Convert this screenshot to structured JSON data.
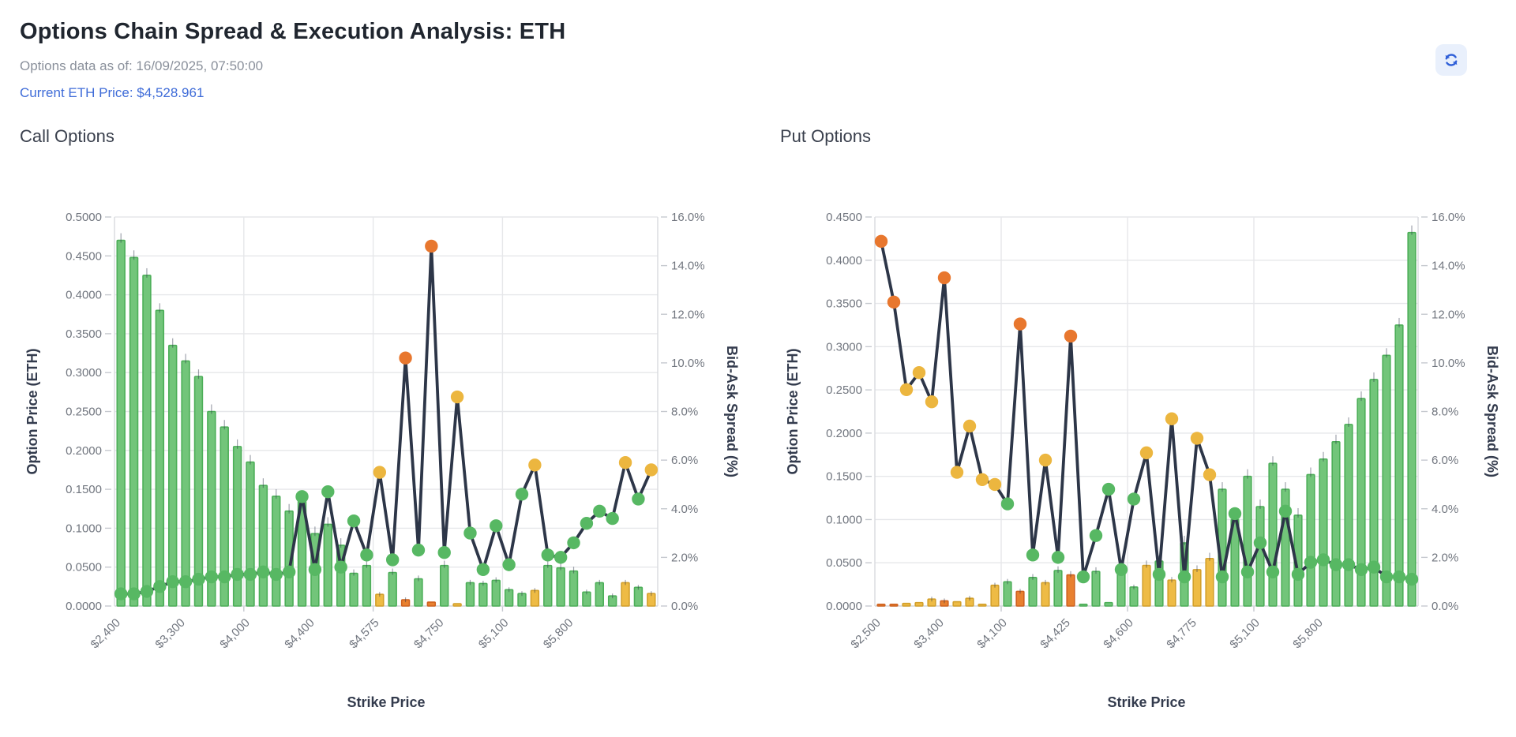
{
  "header": {
    "title": "Options Chain Spread & Execution Analysis: ETH",
    "as_of": "Options data as of: 16/09/2025, 07:50:00",
    "price_line": "Current ETH Price: $4,528.961",
    "refresh_icon": "refresh-icon"
  },
  "colors": {
    "accent_blue": "#3f6cd8",
    "refresh_bg": "#e9f0fc",
    "line": "#2d3648",
    "dot_green": "#57b863",
    "dot_yellow": "#ecb63f",
    "dot_orange": "#e8772e",
    "bar_green_fill": "#72c57a",
    "bar_green_stroke": "#4cae58",
    "bar_yellow_fill": "#eebb45",
    "bar_yellow_stroke": "#d3a02b",
    "bar_orange_fill": "#e8802f",
    "bar_orange_stroke": "#cf621f",
    "grid": "#e6e7ea",
    "axis": "#d8dade",
    "tick_dash": "#c6c9cf",
    "tick_text": "#71767f",
    "axis_title": "#333b4d"
  },
  "chart_data": [
    {
      "type": "bar+line",
      "title": "Call Options",
      "xlabel": "Strike Price",
      "ylabel_left": "Option Price (ETH)",
      "ylabel_right": "Bid-Ask Spread (%)",
      "y_left_max": 0.5,
      "y_left_step": 0.05,
      "y_right_max": 16,
      "y_right_step": 2,
      "x_tick_indices": [
        0,
        5,
        10,
        15,
        20,
        25,
        30,
        35
      ],
      "x_tick_labels": [
        "$2,400",
        "$3,300",
        "$4,000",
        "$4,400",
        "$4,575",
        "$4,750",
        "$5,100",
        "$5,800"
      ],
      "v_grid_indices": [
        10,
        20,
        30
      ],
      "severity_thresholds": {
        "yellow": 5,
        "orange": 10
      },
      "series": [
        {
          "name": "Option Price (ETH)",
          "type": "bar",
          "values": [
            0.47,
            0.448,
            0.425,
            0.38,
            0.335,
            0.315,
            0.295,
            0.25,
            0.23,
            0.205,
            0.185,
            0.155,
            0.141,
            0.122,
            0.135,
            0.093,
            0.105,
            0.078,
            0.042,
            0.052,
            0.015,
            0.043,
            0.008,
            0.035,
            0.005,
            0.052,
            0.003,
            0.03,
            0.029,
            0.033,
            0.021,
            0.016,
            0.02,
            0.052,
            0.049,
            0.045,
            0.018,
            0.03,
            0.013,
            0.03,
            0.024,
            0.016
          ]
        },
        {
          "name": "Bid-Ask Spread (%)",
          "type": "line",
          "values": [
            0.5,
            0.5,
            0.6,
            0.8,
            1.0,
            1.0,
            1.1,
            1.2,
            1.2,
            1.3,
            1.3,
            1.4,
            1.3,
            1.4,
            4.5,
            1.5,
            4.7,
            1.6,
            3.5,
            2.1,
            5.5,
            1.9,
            10.2,
            2.3,
            14.8,
            2.2,
            8.6,
            3.0,
            1.5,
            3.3,
            1.7,
            4.6,
            5.8,
            2.1,
            2.0,
            2.6,
            3.4,
            3.9,
            3.6,
            5.9,
            4.4,
            5.6
          ]
        }
      ]
    },
    {
      "type": "bar+line",
      "title": "Put Options",
      "xlabel": "Strike Price",
      "ylabel_left": "Option Price (ETH)",
      "ylabel_right": "Bid-Ask Spread (%)",
      "y_left_max": 0.45,
      "y_left_step": 0.05,
      "y_right_max": 16,
      "y_right_step": 2,
      "x_tick_indices": [
        0,
        5,
        10,
        15,
        20,
        25,
        30,
        35
      ],
      "x_tick_labels": [
        "$2,500",
        "$3,400",
        "$4,100",
        "$4,425",
        "$4,600",
        "$4,775",
        "$5,100",
        "$5,800"
      ],
      "v_grid_indices": [
        10,
        20,
        30
      ],
      "severity_thresholds": {
        "yellow": 5,
        "orange": 10
      },
      "series": [
        {
          "name": "Option Price (ETH)",
          "type": "bar",
          "values": [
            0.002,
            0.002,
            0.003,
            0.004,
            0.008,
            0.006,
            0.005,
            0.009,
            0.002,
            0.024,
            0.028,
            0.017,
            0.033,
            0.027,
            0.041,
            0.036,
            0.002,
            0.04,
            0.004,
            0.044,
            0.022,
            0.047,
            0.052,
            0.03,
            0.073,
            0.042,
            0.055,
            0.135,
            0.1,
            0.15,
            0.115,
            0.165,
            0.135,
            0.105,
            0.152,
            0.17,
            0.19,
            0.21,
            0.24,
            0.262,
            0.29,
            0.325,
            0.432
          ]
        },
        {
          "name": "Bid-Ask Spread (%)",
          "type": "line",
          "values": [
            15.0,
            12.5,
            8.9,
            9.6,
            8.4,
            13.5,
            5.5,
            7.4,
            5.2,
            5.0,
            4.2,
            11.6,
            2.1,
            6.0,
            2.0,
            11.1,
            1.2,
            2.9,
            4.8,
            1.5,
            4.4,
            6.3,
            1.3,
            7.7,
            1.2,
            6.9,
            5.4,
            1.2,
            3.8,
            1.4,
            2.6,
            1.4,
            3.9,
            1.3,
            1.8,
            1.9,
            1.7,
            1.7,
            1.5,
            1.6,
            1.2,
            1.2,
            1.1
          ]
        }
      ]
    }
  ]
}
